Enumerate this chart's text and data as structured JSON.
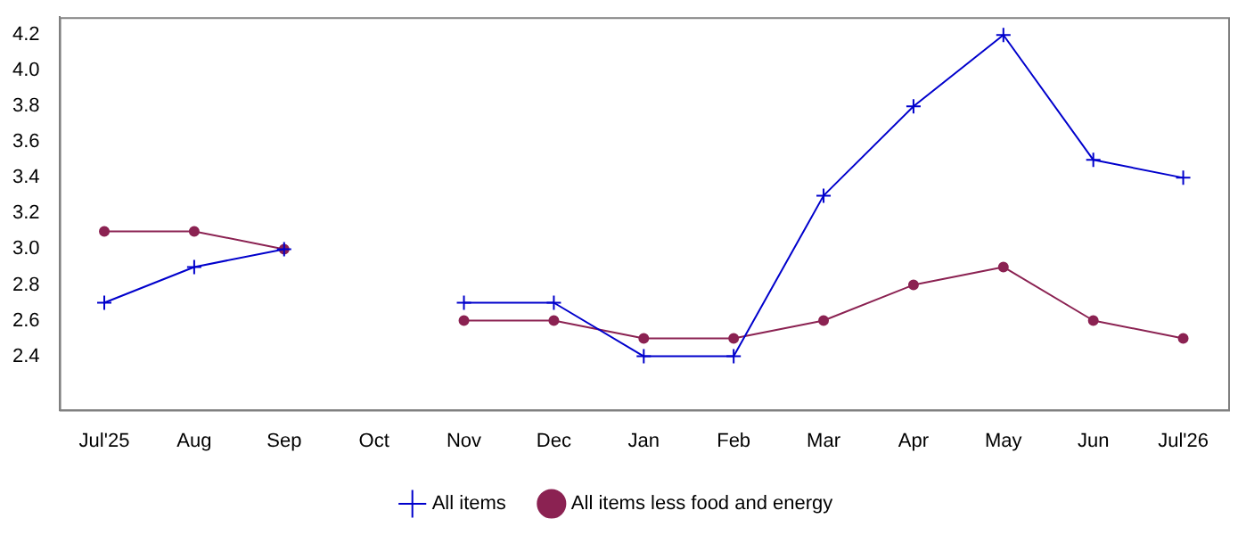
{
  "chart_data": {
    "type": "line",
    "categories": [
      "Jul'25",
      "Aug",
      "Sep",
      "Oct",
      "Nov",
      "Dec",
      "Jan",
      "Feb",
      "Mar",
      "Apr",
      "May",
      "Jun",
      "Jul'26"
    ],
    "series": [
      {
        "name": "All items",
        "color": "#0000cc",
        "marker": "cross",
        "values": [
          2.7,
          2.9,
          3.0,
          null,
          2.7,
          2.7,
          2.4,
          2.4,
          3.3,
          3.8,
          4.2,
          3.5,
          3.4
        ]
      },
      {
        "name": "All items less food and energy",
        "color": "#8b2252",
        "marker": "circle",
        "values": [
          3.1,
          3.1,
          3.0,
          null,
          2.6,
          2.6,
          2.5,
          2.5,
          2.6,
          2.8,
          2.9,
          2.6,
          2.5
        ]
      }
    ],
    "ylim": [
      2.1,
      4.3
    ],
    "yticks": [
      {
        "value": 2.4,
        "label": "2.4"
      },
      {
        "value": 2.6,
        "label": "2.6"
      },
      {
        "value": 2.8,
        "label": "2.8"
      },
      {
        "value": 3.0,
        "label": "3.0"
      },
      {
        "value": 3.2,
        "label": "3.2"
      },
      {
        "value": 3.4,
        "label": "3.4"
      },
      {
        "value": 3.6,
        "label": "3.6"
      },
      {
        "value": 3.8,
        "label": "3.8"
      },
      {
        "value": 4.0,
        "label": "4.0"
      },
      {
        "value": 4.2,
        "label": "4.2"
      }
    ],
    "grid": false,
    "legend": "bottom",
    "line_style": "solid"
  }
}
